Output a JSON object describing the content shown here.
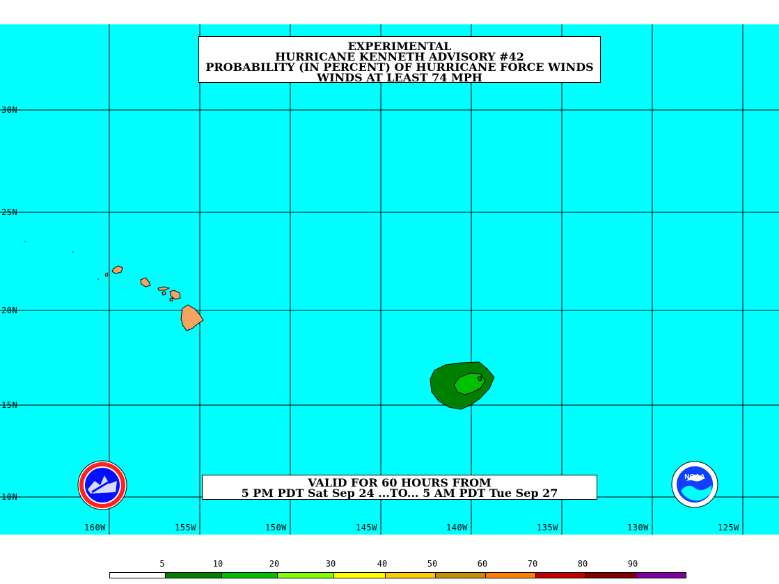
{
  "title": {
    "lines": [
      "EXPERIMENTAL",
      "HURRICANE KENNETH ADVISORY #42",
      "PROBABILITY (IN PERCENT) OF HURRICANE FORCE WINDS",
      "WINDS AT LEAST 74 MPH"
    ]
  },
  "valid": {
    "line1": "VALID FOR 60 HOURS FROM",
    "line2": "5 PM PDT Sat Sep 24 ...TO... 5 AM PDT Tue Sep 27"
  },
  "latitudes": [
    "30N",
    "25N",
    "20N",
    "15N",
    "10N"
  ],
  "longitudes": [
    "160W",
    "155W",
    "150W",
    "145W",
    "140W",
    "135W",
    "130W",
    "125W"
  ],
  "legend": {
    "labels": [
      "5",
      "10",
      "20",
      "30",
      "40",
      "50",
      "60",
      "70",
      "80",
      "90"
    ],
    "colors": [
      "#ffffff",
      "#008000",
      "#00c000",
      "#80ff00",
      "#ffff00",
      "#ffcc00",
      "#c89000",
      "#ff8000",
      "#c00000",
      "#800000",
      "#8000a0"
    ]
  },
  "colors": {
    "ocean": "#00ffff",
    "land": "#f4a460",
    "prob_10_20": "#008000",
    "prob_20_30": "#00c000",
    "grid": "#000000"
  },
  "logos": {
    "left": "nws-logo",
    "right": "noaa-logo",
    "right_text": "NOAA"
  }
}
